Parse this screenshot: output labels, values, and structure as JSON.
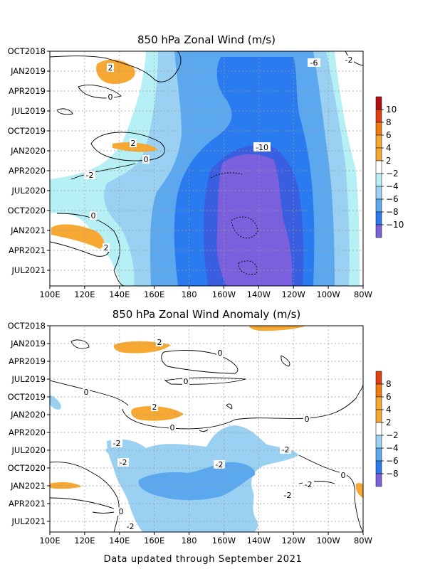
{
  "colors": {
    "orange": "#f7a833",
    "light_cyan": "#b6f0f5",
    "light_blue": "#9ad0f2",
    "mid_blue": "#5ca8ee",
    "blue": "#2a7af0",
    "dark_blue": "#3a5ee0",
    "purple": "#7a60dc",
    "dark_orange": "#f07a10",
    "red": "#e04010",
    "dark_red": "#b01010"
  },
  "footer": "Data updated through September 2021",
  "chart_data": [
    {
      "type": "heatmap",
      "title": "850 hPa Zonal Wind (m/s)",
      "x_ticks": [
        "100E",
        "120E",
        "140E",
        "160E",
        "180",
        "160W",
        "140W",
        "120W",
        "100W",
        "80W"
      ],
      "y_ticks": [
        "OCT2018",
        "JAN2019",
        "APR2019",
        "JUL2019",
        "OCT2019",
        "JAN2020",
        "APR2020",
        "JUL2020",
        "OCT2020",
        "JAN2021",
        "APR2021",
        "JUL2021"
      ],
      "colorbar_labels": [
        "10",
        "8",
        "6",
        "4",
        "2",
        "−2",
        "−4",
        "−6",
        "−8",
        "−10"
      ],
      "contour_labels": [
        "2",
        "-6",
        "-2",
        "0",
        "2",
        "0",
        "-10",
        "-2",
        "0",
        "2"
      ],
      "grid": true
    },
    {
      "type": "heatmap",
      "title": "850 hPa Zonal Wind Anomaly (m/s)",
      "x_ticks": [
        "100E",
        "120E",
        "140E",
        "160E",
        "180",
        "160W",
        "140W",
        "120W",
        "100W",
        "80W"
      ],
      "y_ticks": [
        "OCT2018",
        "JAN2019",
        "APR2019",
        "JUL2019",
        "OCT2019",
        "JAN2020",
        "APR2020",
        "JUL2020",
        "OCT2020",
        "JAN2021",
        "APR2021",
        "JUL2021"
      ],
      "colorbar_labels": [
        "8",
        "6",
        "4",
        "2",
        "−2",
        "−4",
        "−6",
        "−8"
      ],
      "contour_labels": [
        "2",
        "0",
        "0",
        "0",
        "2",
        "0",
        "0",
        "-2",
        "-2",
        "-2",
        "-2",
        "-2",
        "0",
        "-2",
        "0",
        "-2"
      ],
      "grid": true
    }
  ]
}
